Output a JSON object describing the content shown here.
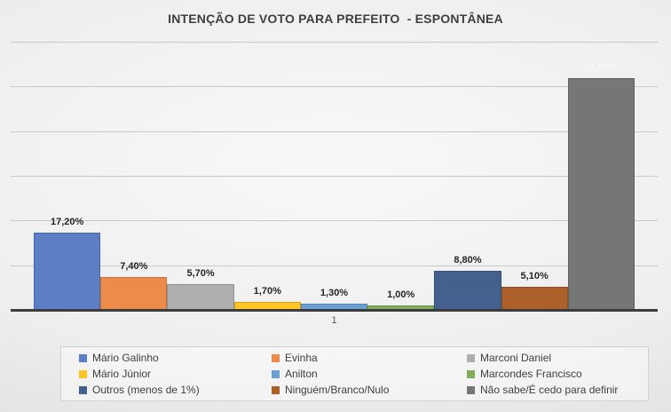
{
  "title": "INTENÇÃO DE VOTO PARA PREFEITO  - ESPONTÂNEA",
  "category_axis_label": "1",
  "chart_data": {
    "type": "bar",
    "categories": [
      "1"
    ],
    "title": "INTENÇÃO DE VOTO PARA PREFEITO  - ESPONTÂNEA",
    "xlabel": "",
    "ylabel": "",
    "ylim": [
      0,
      60
    ],
    "grid": true,
    "grid_interval": 10,
    "legend_position": "bottom",
    "value_label_default_color": "#262626",
    "series": [
      {
        "name": "Mário Galinho",
        "value": 17.2,
        "label": "17,20%",
        "color": "#5B7EC5"
      },
      {
        "name": "Evinha",
        "value": 7.4,
        "label": "7,40%",
        "color": "#ED8C4A"
      },
      {
        "name": "Marconi Daniel",
        "value": 5.7,
        "label": "5,70%",
        "color": "#AFAFAF"
      },
      {
        "name": "Mário Júnior",
        "value": 1.7,
        "label": "1,70%",
        "color": "#FFC524"
      },
      {
        "name": "Anilton",
        "value": 1.3,
        "label": "1,30%",
        "color": "#6C9FD4"
      },
      {
        "name": "Marcondes Francisco",
        "value": 1.0,
        "label": "1,00%",
        "color": "#82AE5C"
      },
      {
        "name": "Outros (menos de 1%)",
        "value": 8.8,
        "label": "8,80%",
        "color": "#44608F"
      },
      {
        "name": "Ninguém/Branco/Nulo",
        "value": 5.1,
        "label": "5,10%",
        "color": "#AC612B"
      },
      {
        "name": "Não sabe/É cedo para definir",
        "value": 51.9,
        "label": "51,90%",
        "color": "#767676",
        "label_color": "#F5F5F5"
      }
    ]
  }
}
